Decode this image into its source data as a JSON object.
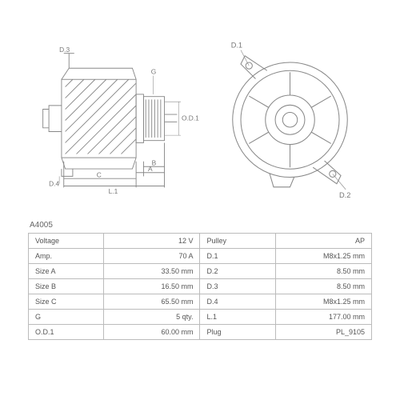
{
  "part_number": "A4005",
  "drawings": {
    "side": {
      "labels": [
        "D.3",
        "G",
        "O.D.1",
        "D.4",
        "A",
        "B",
        "C",
        "L.1"
      ]
    },
    "front": {
      "labels": [
        "D.1",
        "D.2"
      ]
    }
  },
  "table": {
    "rows": [
      {
        "l1": "Voltage",
        "v1": "12 V",
        "l2": "Pulley",
        "v2": "AP"
      },
      {
        "l1": "Amp.",
        "v1": "70 A",
        "l2": "D.1",
        "v2": "M8x1.25 mm"
      },
      {
        "l1": "Size A",
        "v1": "33.50 mm",
        "l2": "D.2",
        "v2": "8.50 mm"
      },
      {
        "l1": "Size B",
        "v1": "16.50 mm",
        "l2": "D.3",
        "v2": "8.50 mm"
      },
      {
        "l1": "Size C",
        "v1": "65.50 mm",
        "l2": "D.4",
        "v2": "M8x1.25 mm"
      },
      {
        "l1": "G",
        "v1": "5 qty.",
        "l2": "L.1",
        "v2": "177.00 mm"
      },
      {
        "l1": "O.D.1",
        "v1": "60.00 mm",
        "l2": "Plug",
        "v2": "PL_9105"
      }
    ]
  },
  "colors": {
    "line": "#888888",
    "text": "#666666",
    "border": "#bbbbbb",
    "bg": "#ffffff"
  }
}
